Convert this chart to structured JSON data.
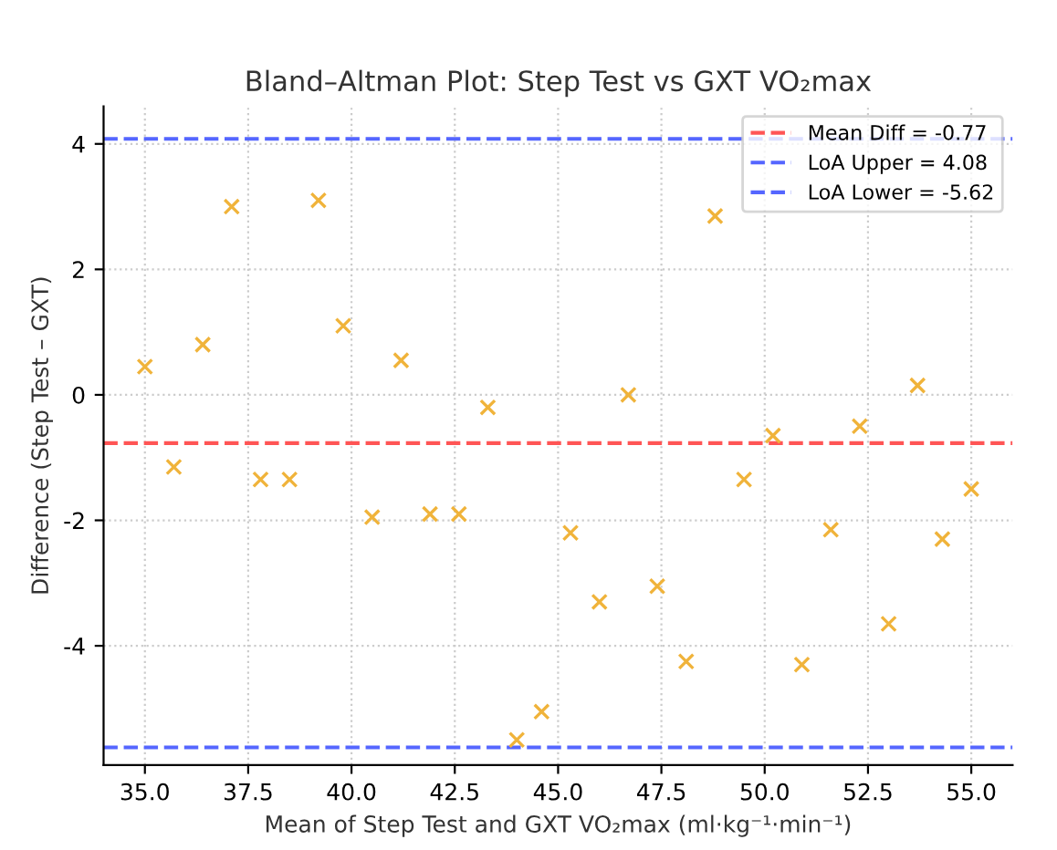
{
  "chart_data": {
    "type": "scatter",
    "title": "Bland–Altman Plot: Step Test vs GXT VO₂max",
    "xlabel": "Mean of Step Test and GXT VO₂max (ml·kg⁻¹·min⁻¹)",
    "ylabel": "Difference (Step Test – GXT)",
    "x": [
      35.0,
      35.7,
      36.4,
      37.1,
      37.8,
      38.5,
      39.2,
      39.8,
      40.5,
      41.2,
      41.9,
      42.6,
      43.3,
      44.0,
      44.6,
      45.3,
      46.0,
      46.7,
      47.4,
      48.1,
      48.8,
      49.5,
      50.2,
      50.9,
      51.6,
      52.3,
      53.0,
      53.7,
      54.3,
      55.0
    ],
    "series": [
      {
        "color": "#f0b33a",
        "values": [
          0.45,
          -1.15,
          0.8,
          3.0,
          -1.35,
          -1.35,
          3.1,
          1.1,
          -1.95,
          0.55,
          -1.9,
          -1.9,
          -0.2,
          -5.5,
          -5.05,
          -2.2,
          -3.3,
          0.0,
          -3.05,
          -4.25,
          2.85,
          -1.35,
          -0.65,
          -4.3,
          -2.15,
          -0.5,
          -3.65,
          0.15,
          -2.3,
          -1.5
        ]
      }
    ],
    "marker": "cross",
    "ref_lines": [
      {
        "axis": "y",
        "value": -0.77,
        "label": "Mean Diff = -0.77",
        "color": "#ff5555",
        "line_style": "dashed"
      },
      {
        "axis": "y",
        "value": 4.08,
        "label": "LoA Upper = 4.08",
        "color": "#5566ff",
        "line_style": "dashed"
      },
      {
        "axis": "y",
        "value": -5.62,
        "label": "LoA Lower = -5.62",
        "color": "#5566ff",
        "line_style": "dashed"
      }
    ],
    "xlim": [
      34.0,
      56.0
    ],
    "ylim": [
      -5.9,
      4.6
    ],
    "xticks": [
      {
        "value": 35,
        "label": "35.0"
      },
      {
        "value": 37.5,
        "label": "37.5"
      },
      {
        "value": 40,
        "label": "40.0"
      },
      {
        "value": 42.5,
        "label": "42.5"
      },
      {
        "value": 45,
        "label": "45.0"
      },
      {
        "value": 47.5,
        "label": "47.5"
      },
      {
        "value": 50,
        "label": "50.0"
      },
      {
        "value": 52.5,
        "label": "52.5"
      },
      {
        "value": 55,
        "label": "55.0"
      }
    ],
    "yticks": [
      -4,
      -2,
      0,
      2,
      4
    ],
    "grid": true,
    "legend": "top right"
  }
}
